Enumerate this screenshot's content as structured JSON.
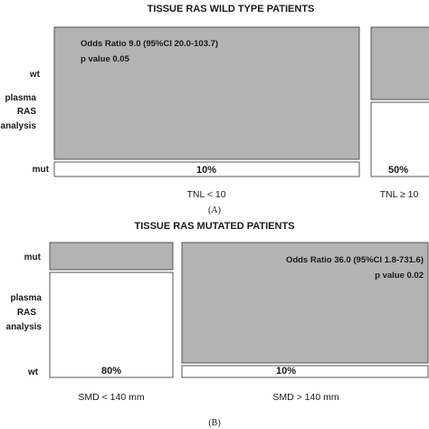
{
  "colors": {
    "filled": "#b3b3b3",
    "empty": "#ffffff",
    "stroke": "#555555"
  },
  "chart_data": [
    {
      "type": "mosaic",
      "title": "TISSUE RAS WILD TYPE PATIENTS",
      "caption": "(A)",
      "y_axis": {
        "label_lines": [
          "plasma",
          "RAS",
          "analysis"
        ],
        "top": "wt",
        "bottom": "mut"
      },
      "columns": [
        {
          "label": "TNL < 10",
          "pct_label": "10%",
          "mut_fraction": 0.1
        },
        {
          "label": "TNL ≥ 10",
          "pct_label": "50%",
          "mut_fraction": 0.5
        }
      ],
      "annotation": {
        "line1": "Odds Ratio 9.0 (95%CI 20.0-103.7)",
        "line2": "p value 0.05"
      }
    },
    {
      "type": "mosaic",
      "title": "TISSUE RAS MUTATED PATIENTS",
      "caption": "(B)",
      "y_axis": {
        "label_lines": [
          "plasma",
          "RAS",
          "analysis"
        ],
        "top": "mut",
        "bottom": "wt"
      },
      "columns": [
        {
          "label": "SMD < 140 mm",
          "pct_label": "80%",
          "wt_fraction": 0.8
        },
        {
          "label": "SMD > 140 mm",
          "pct_label": "10%",
          "wt_fraction": 0.1
        }
      ],
      "annotation": {
        "line1": "Odds Ratio 36.0 (95%CI 1.8-731.6)",
        "line2": "p value 0.02"
      }
    }
  ]
}
